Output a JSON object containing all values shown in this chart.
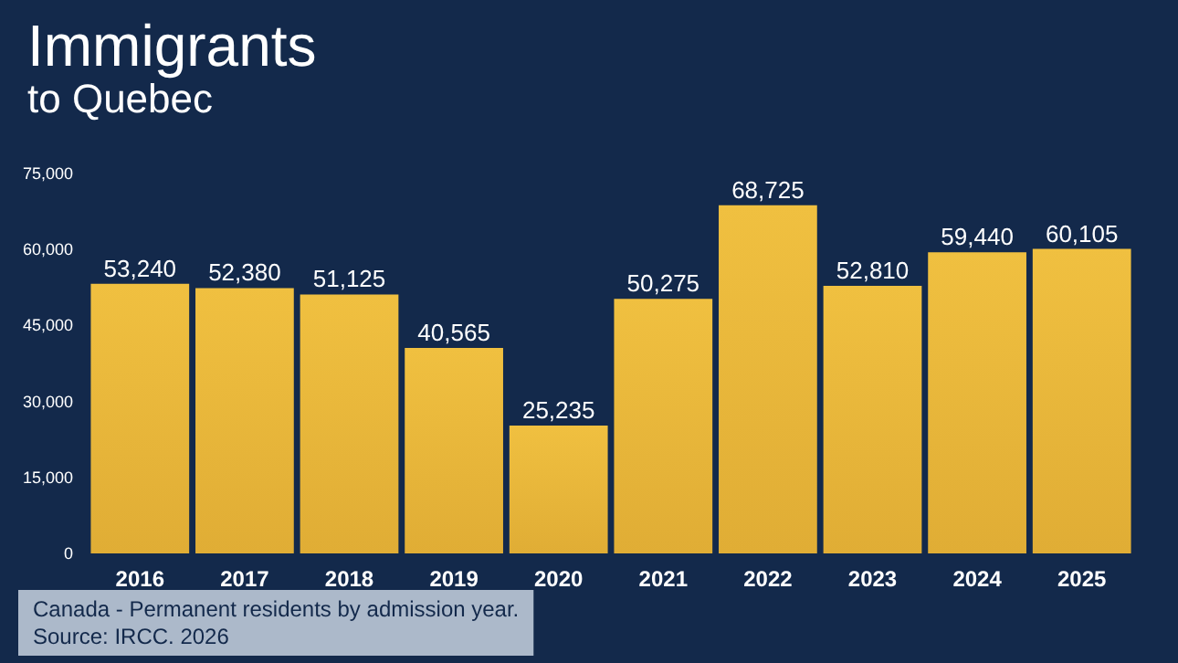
{
  "chart_data": {
    "type": "bar",
    "title": "Immigrants",
    "subtitle": "to Quebec",
    "categories": [
      "2016",
      "2017",
      "2018",
      "2019",
      "2020",
      "2021",
      "2022",
      "2023",
      "2024",
      "2025"
    ],
    "values": [
      53240,
      52380,
      51125,
      40565,
      25235,
      50275,
      68725,
      52810,
      59440,
      60105
    ],
    "color": "#e0ad35",
    "ylim": [
      0,
      75000
    ],
    "yticks": [
      {
        "value": 0,
        "label": "0"
      },
      {
        "value": 15000,
        "label": "15,000"
      },
      {
        "value": 30000,
        "label": "30,000"
      },
      {
        "value": 45000,
        "label": "45,000"
      },
      {
        "value": 60000,
        "label": "60,000"
      },
      {
        "value": 75000,
        "label": "75,000"
      }
    ],
    "grid": false,
    "value_labels": [
      "53,240",
      "52,380",
      "51,125",
      "40,565",
      "25,235",
      "50,275",
      "68,725",
      "52,810",
      "59,440",
      "60,105"
    ],
    "annotations": [
      "Canada - Permanent residents by admission year.",
      "Source: IRCC. 2026"
    ]
  }
}
